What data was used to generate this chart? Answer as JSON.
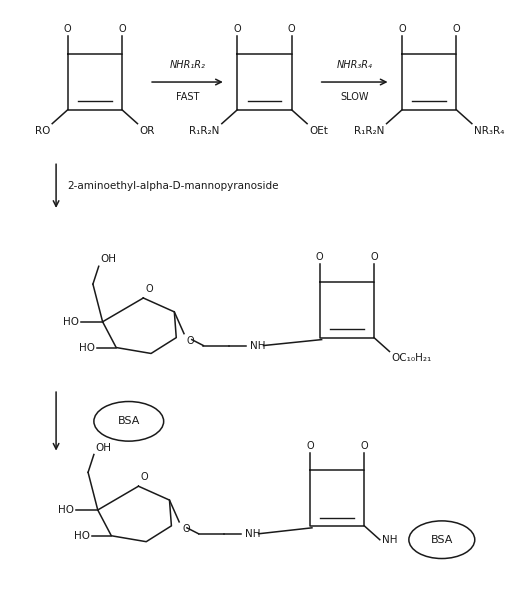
{
  "bg_color": "#ffffff",
  "line_color": "#1a1a1a",
  "fig_width": 5.12,
  "fig_height": 5.94,
  "dpi": 100,
  "arrow1_label_top": "NHR₁R₂",
  "arrow1_label_bot": "FAST",
  "arrow2_label_top": "NHR₃R₄",
  "arrow2_label_bot": "SLOW",
  "step2_label": "2-aminoethyl-alpha-D-mannopyranoside",
  "bsa_label": "BSA",
  "oc_label": "OC₁₀H₂₁"
}
